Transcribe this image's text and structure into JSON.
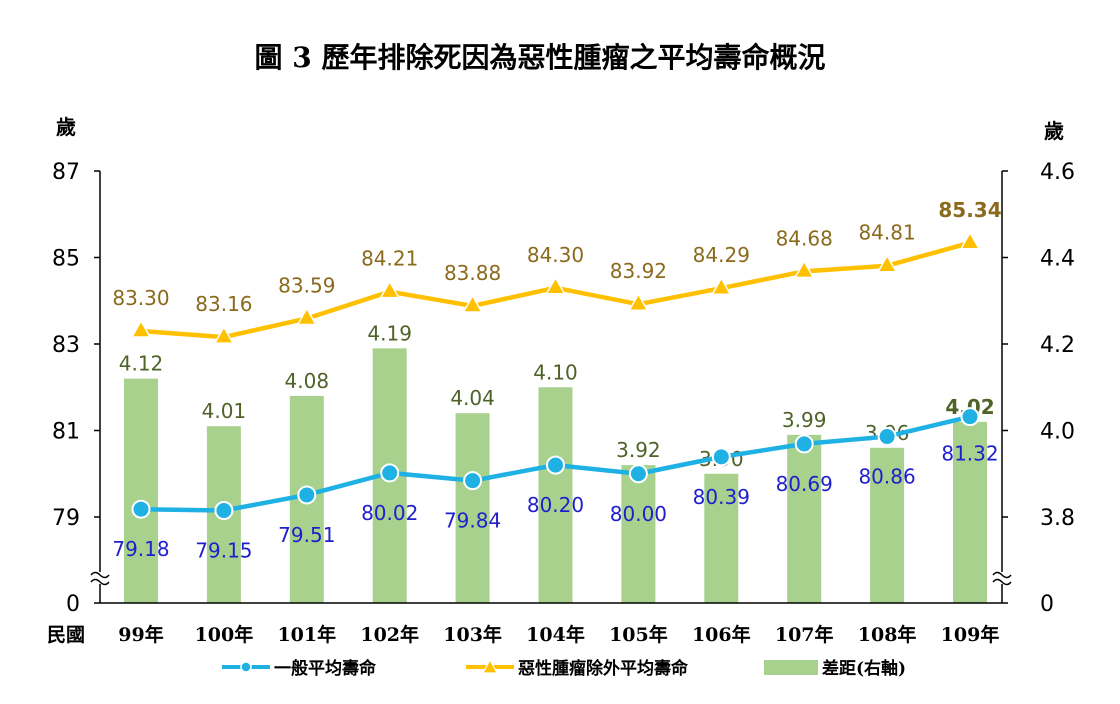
{
  "chart_data": {
    "type": "bar+line",
    "title": "圖 3 歷年排除死因為惡性腫瘤之平均壽命概況",
    "y_left_unit": "歲",
    "y_right_unit": "歲",
    "x_axis_label": "民國",
    "categories": [
      "99年",
      "100年",
      "101年",
      "102年",
      "103年",
      "104年",
      "105年",
      "106年",
      "107年",
      "108年",
      "109年"
    ],
    "y_left_ticks": [
      "87",
      "85",
      "83",
      "81",
      "79",
      "0"
    ],
    "y_right_ticks": [
      "4.6",
      "4.4",
      "4.2",
      "4.0",
      "3.8",
      "0"
    ],
    "y_left_range": [
      79,
      87
    ],
    "y_right_range": [
      3.8,
      4.6
    ],
    "axis_break": true,
    "series": [
      {
        "name": "一般平均壽命",
        "type": "line",
        "axis": "left",
        "color": "#1fb0e4",
        "label_color": "#1f1fcc",
        "values": [
          79.18,
          79.15,
          79.51,
          80.02,
          79.84,
          80.2,
          80.0,
          80.39,
          80.69,
          80.86,
          81.32
        ],
        "labels": [
          "79.18",
          "79.15",
          "79.51",
          "80.02",
          "79.84",
          "80.20",
          "80.00",
          "80.39",
          "80.69",
          "80.86",
          "81.32"
        ]
      },
      {
        "name": "惡性腫瘤除外平均壽命",
        "type": "line",
        "axis": "left",
        "color": "#ffc000",
        "label_color": "#8a6a1c",
        "values": [
          83.3,
          83.16,
          83.59,
          84.21,
          83.88,
          84.3,
          83.92,
          84.29,
          84.68,
          84.81,
          85.34
        ],
        "labels": [
          "83.30",
          "83.16",
          "83.59",
          "84.21",
          "83.88",
          "84.30",
          "83.92",
          "84.29",
          "84.68",
          "84.81",
          "85.34"
        ]
      },
      {
        "name": "差距(右軸)",
        "type": "bar",
        "axis": "right",
        "color": "#a9d18e",
        "label_color": "#4f6228",
        "values": [
          4.12,
          4.01,
          4.08,
          4.19,
          4.04,
          4.1,
          3.92,
          3.9,
          3.99,
          3.96,
          4.02
        ],
        "labels": [
          "4.12",
          "4.01",
          "4.08",
          "4.19",
          "4.04",
          "4.10",
          "3.92",
          "3.90",
          "3.99",
          "3.96",
          "4.02"
        ]
      }
    ],
    "legend": [
      "一般平均壽命",
      "惡性腫瘤除外平均壽命",
      "差距(右軸)"
    ],
    "legend_position": "bottom",
    "grid": false
  }
}
